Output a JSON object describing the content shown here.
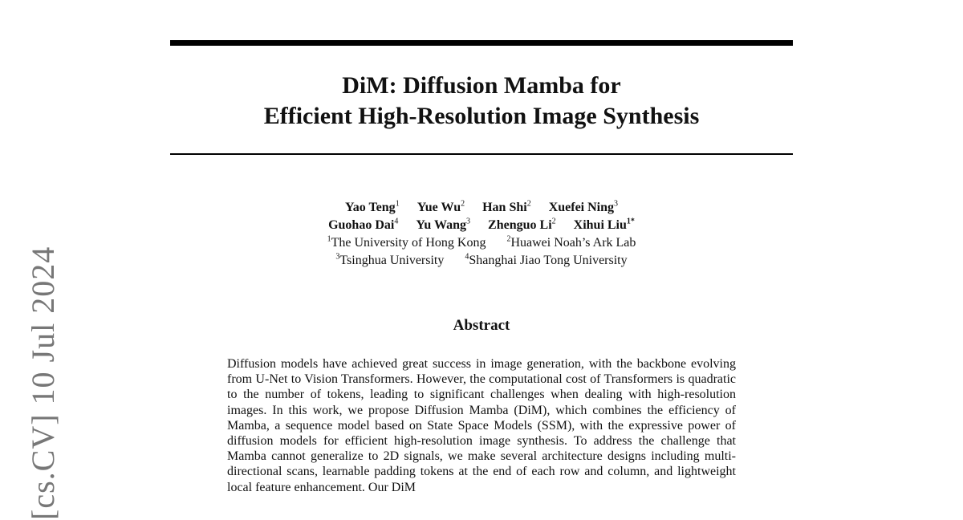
{
  "arxiv_stamp": "[cs.CV]  10 Jul 2024",
  "title": [
    "DiM: Diffusion Mamba for",
    "Efficient High-Resolution Image Synthesis"
  ],
  "authors_rows": [
    [
      {
        "name": "Yao Teng",
        "sup": "1"
      },
      {
        "name": "Yue Wu",
        "sup": "2"
      },
      {
        "name": "Han Shi",
        "sup": "2"
      },
      {
        "name": "Xuefei Ning",
        "sup": "3"
      }
    ],
    [
      {
        "name": "Guohao Dai",
        "sup": "4"
      },
      {
        "name": "Yu Wang",
        "sup": "3"
      },
      {
        "name": "Zhenguo Li",
        "sup": "2"
      },
      {
        "name": "Xihui Liu",
        "sup": "1*"
      }
    ]
  ],
  "affiliation_rows": [
    [
      {
        "sup": "1",
        "name": "The University of Hong Kong"
      },
      {
        "sup": "2",
        "name": "Huawei Noah’s Ark Lab"
      }
    ],
    [
      {
        "sup": "3",
        "name": "Tsinghua University"
      },
      {
        "sup": "4",
        "name": "Shanghai Jiao Tong University"
      }
    ]
  ],
  "abstract_heading": "Abstract",
  "abstract": "Diffusion models have achieved great success in image generation, with the backbone evolving from U-Net to Vision Transformers. However, the computational cost of Transformers is quadratic to the number of tokens, leading to significant challenges when dealing with high-resolution images. In this work, we propose Diffusion Mamba (DiM), which combines the efficiency of Mamba, a sequence model based on State Space Models (SSM), with the expressive power of diffusion models for efficient high-resolution image synthesis. To address the challenge that Mamba cannot generalize to 2D signals, we make several architecture designs including multi-directional scans, learnable padding tokens at the end of each row and column, and lightweight local feature enhancement. Our DiM"
}
